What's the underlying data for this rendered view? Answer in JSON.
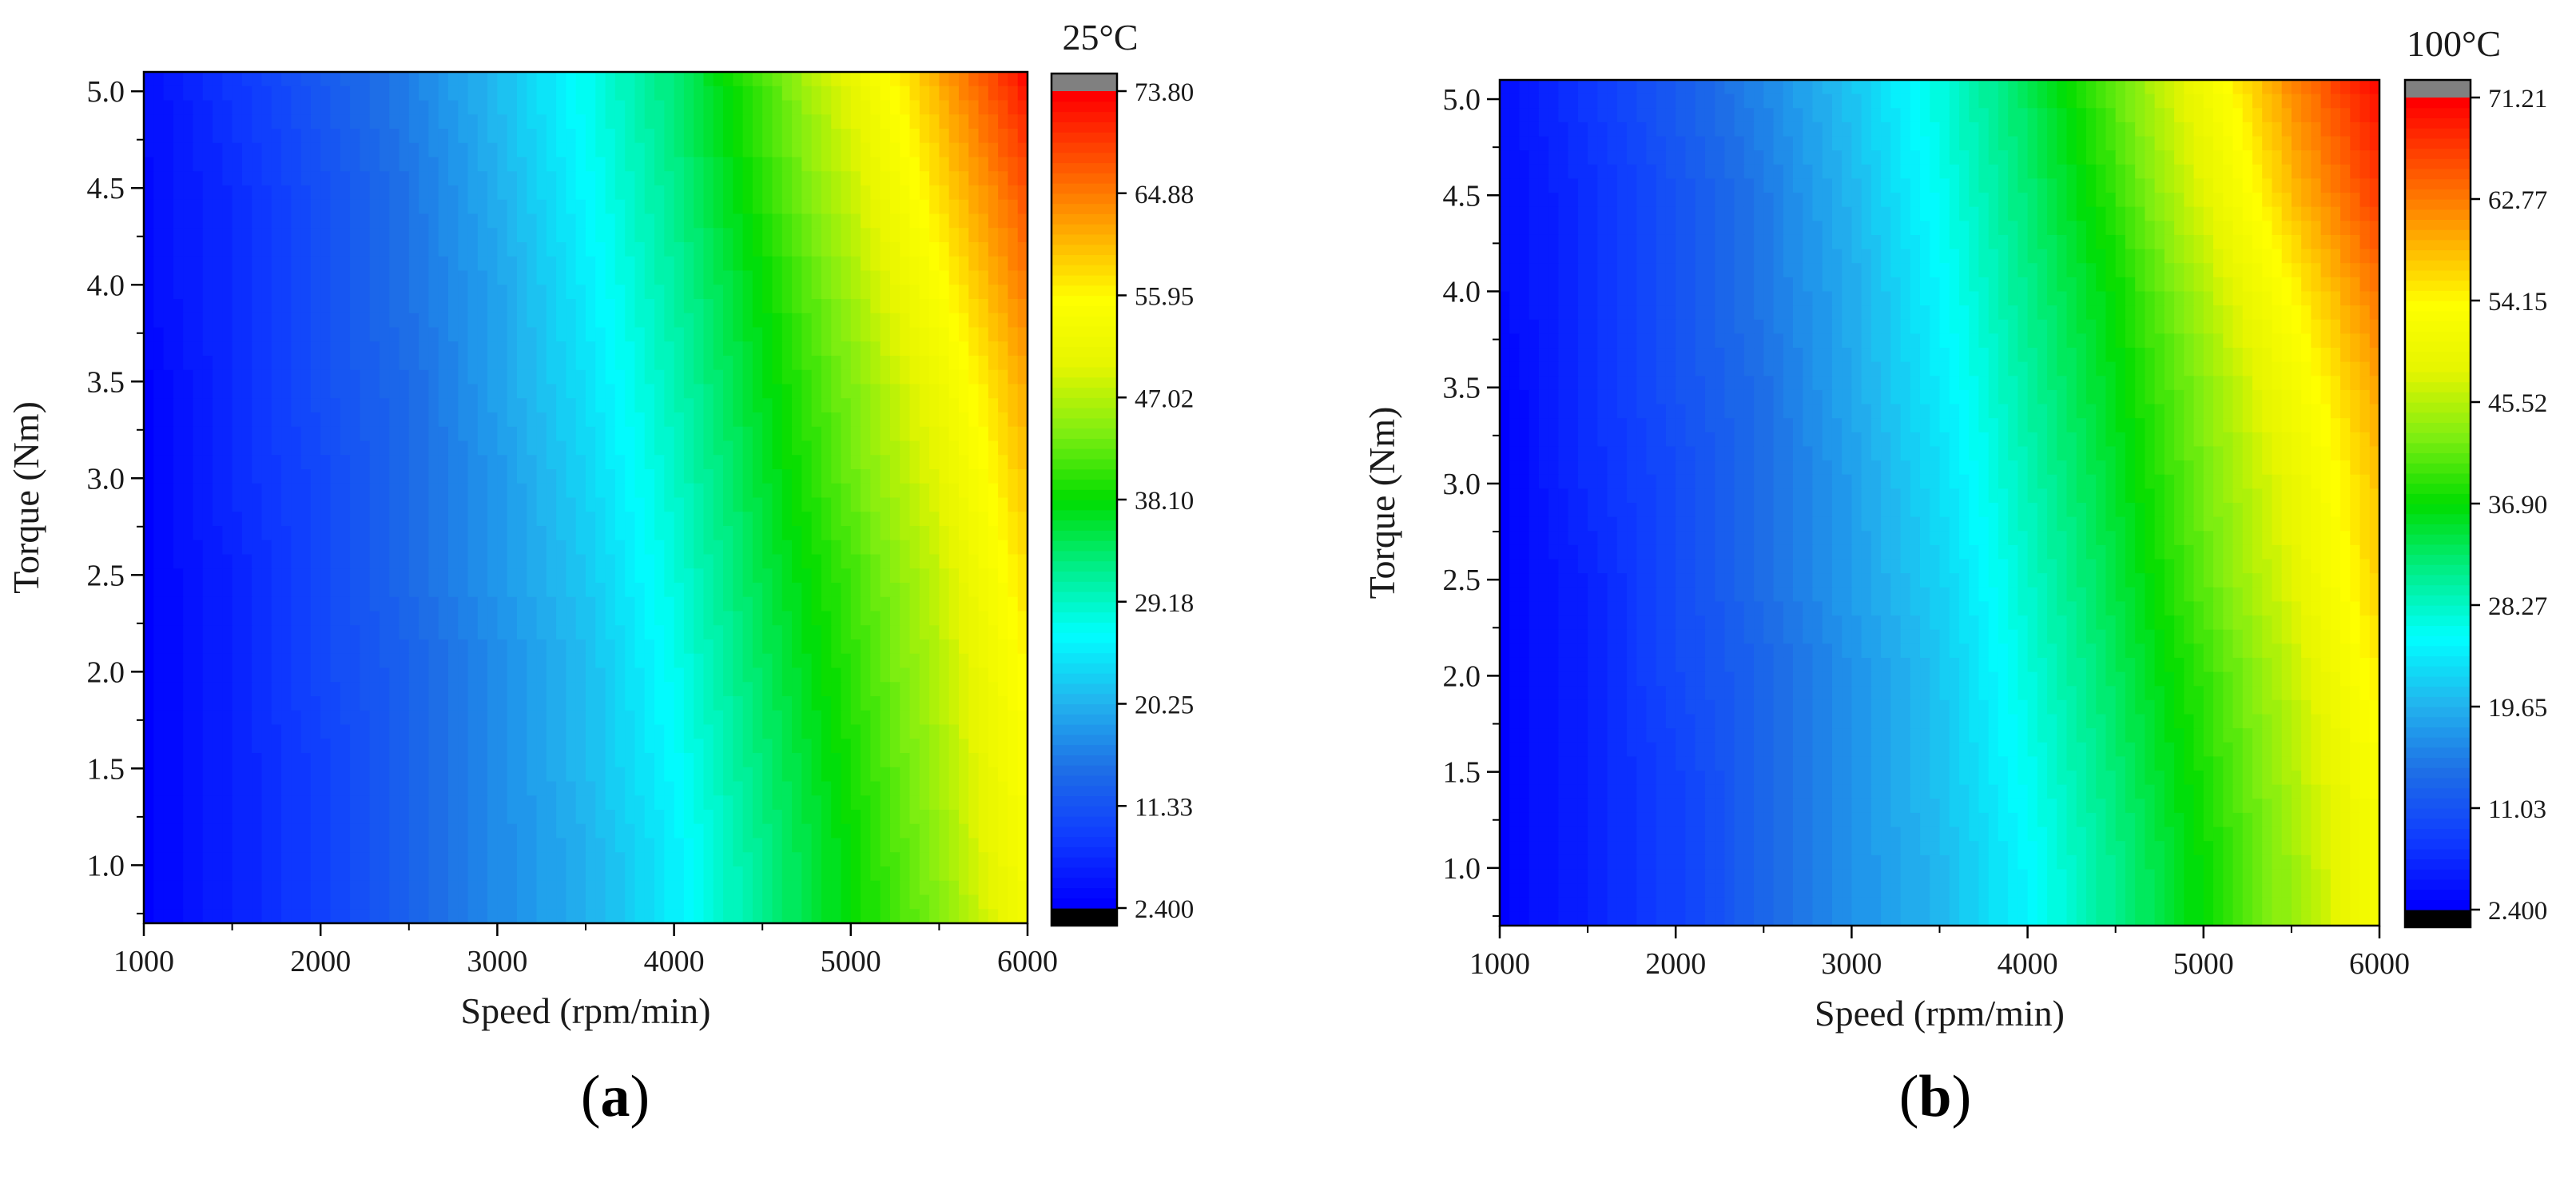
{
  "colormap": [
    "#0000ff",
    "#0f3cff",
    "#1e6fe6",
    "#22b4ee",
    "#00ffff",
    "#00ee88",
    "#00dd00",
    "#7fee11",
    "#e6f500",
    "#ffff00",
    "#ffaa00",
    "#ff5500",
    "#ff0000"
  ],
  "colorbar_under": "#000000",
  "colorbar_over": "#808080",
  "chart_data": [
    {
      "type": "heatmap",
      "panel_label": "a",
      "xlabel": "Speed (rpm/min)",
      "ylabel": "Torque (Nm)",
      "colorbar_title": "25°C",
      "x_ticks": [
        "1000",
        "2000",
        "3000",
        "4000",
        "5000",
        "6000"
      ],
      "y_ticks": [
        "1.0",
        "1.5",
        "2.0",
        "2.5",
        "3.0",
        "3.5",
        "4.0",
        "4.5",
        "5.0"
      ],
      "colorbar_ticks": [
        "2.400",
        "11.33",
        "20.25",
        "29.18",
        "38.10",
        "47.02",
        "55.95",
        "64.88",
        "73.80"
      ],
      "xlim": [
        1000,
        6000
      ],
      "ylim": [
        0.7,
        5.1
      ],
      "zlim": [
        2.4,
        73.8
      ],
      "x": [
        1000,
        1500,
        2000,
        2500,
        3000,
        3500,
        4000,
        4500,
        5000,
        5500,
        6000
      ],
      "y": [
        0.7,
        1.0,
        1.5,
        2.0,
        2.5,
        3.0,
        3.5,
        4.0,
        4.5,
        5.0,
        5.1
      ],
      "z": [
        [
          3,
          6,
          9,
          13,
          17,
          20,
          25,
          32,
          38,
          44,
          53
        ],
        [
          3,
          6,
          9,
          13,
          17,
          20,
          25,
          32,
          38,
          45,
          54
        ],
        [
          3,
          6,
          9,
          13,
          17,
          21,
          26,
          33,
          39,
          46,
          55
        ],
        [
          3,
          6,
          10,
          13,
          17,
          21,
          27,
          34,
          40,
          47,
          56
        ],
        [
          3,
          6,
          10,
          14,
          18,
          22,
          28,
          35,
          41,
          48,
          58
        ],
        [
          3,
          7,
          10,
          14,
          18,
          23,
          29,
          36,
          43,
          50,
          60
        ],
        [
          3,
          7,
          11,
          14,
          19,
          24,
          30,
          37,
          44,
          52,
          62
        ],
        [
          4,
          7,
          11,
          15,
          19,
          25,
          31,
          38,
          46,
          55,
          65
        ],
        [
          4,
          7,
          11,
          15,
          20,
          26,
          32,
          40,
          48,
          58,
          68
        ],
        [
          4,
          8,
          12,
          16,
          21,
          27,
          33,
          41,
          50,
          61,
          72
        ],
        [
          4,
          8,
          12,
          16,
          21,
          27,
          33,
          42,
          51,
          62,
          73
        ]
      ]
    },
    {
      "type": "heatmap",
      "panel_label": "b",
      "xlabel": "Speed (rpm/min)",
      "ylabel": "Torque (Nm)",
      "colorbar_title": "100°C",
      "x_ticks": [
        "1000",
        "2000",
        "3000",
        "4000",
        "5000",
        "6000"
      ],
      "y_ticks": [
        "1.0",
        "1.5",
        "2.0",
        "2.5",
        "3.0",
        "3.5",
        "4.0",
        "4.5",
        "5.0"
      ],
      "colorbar_ticks": [
        "2.400",
        "11.03",
        "19.65",
        "28.27",
        "36.90",
        "45.52",
        "54.15",
        "62.77",
        "71.21"
      ],
      "xlim": [
        1000,
        6000
      ],
      "ylim": [
        0.7,
        5.1
      ],
      "zlim": [
        2.4,
        71.21
      ],
      "x": [
        1000,
        1500,
        2000,
        2500,
        3000,
        3500,
        4000,
        4500,
        5000,
        5500,
        6000
      ],
      "y": [
        0.7,
        1.0,
        1.5,
        2.0,
        2.5,
        3.0,
        3.5,
        4.0,
        4.5,
        5.0,
        5.1
      ],
      "z": [
        [
          3,
          6,
          9,
          13,
          17,
          20,
          25,
          31,
          37,
          44,
          52
        ],
        [
          3,
          6,
          9,
          13,
          17,
          20,
          25,
          31,
          37,
          44,
          52
        ],
        [
          3,
          6,
          9,
          13,
          17,
          21,
          26,
          32,
          38,
          45,
          53
        ],
        [
          3,
          6,
          10,
          13,
          17,
          21,
          27,
          33,
          39,
          46,
          55
        ],
        [
          3,
          6,
          10,
          14,
          18,
          22,
          28,
          34,
          41,
          48,
          57
        ],
        [
          3,
          7,
          10,
          14,
          18,
          23,
          29,
          35,
          42,
          49,
          58
        ],
        [
          3,
          7,
          11,
          14,
          19,
          24,
          30,
          36,
          43,
          51,
          60
        ],
        [
          4,
          7,
          11,
          15,
          19,
          25,
          31,
          37,
          45,
          54,
          63
        ],
        [
          4,
          7,
          11,
          15,
          20,
          26,
          32,
          39,
          48,
          58,
          67
        ],
        [
          4,
          8,
          12,
          16,
          21,
          27,
          33,
          41,
          50,
          61,
          70
        ],
        [
          4,
          8,
          12,
          16,
          21,
          27,
          33,
          41,
          51,
          62,
          71
        ]
      ]
    }
  ]
}
